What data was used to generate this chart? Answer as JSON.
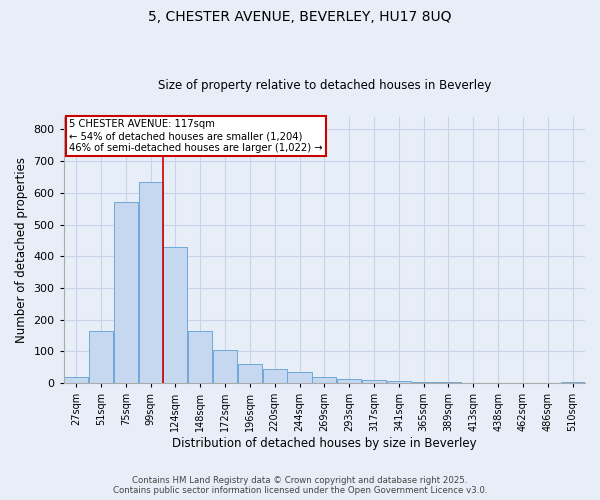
{
  "title_line1": "5, CHESTER AVENUE, BEVERLEY, HU17 8UQ",
  "title_line2": "Size of property relative to detached houses in Beverley",
  "xlabel": "Distribution of detached houses by size in Beverley",
  "ylabel": "Number of detached properties",
  "categories": [
    "27sqm",
    "51sqm",
    "75sqm",
    "99sqm",
    "124sqm",
    "148sqm",
    "172sqm",
    "196sqm",
    "220sqm",
    "244sqm",
    "269sqm",
    "293sqm",
    "317sqm",
    "341sqm",
    "365sqm",
    "389sqm",
    "413sqm",
    "438sqm",
    "462sqm",
    "486sqm",
    "510sqm"
  ],
  "values": [
    20,
    165,
    570,
    635,
    430,
    165,
    105,
    60,
    45,
    35,
    20,
    13,
    10,
    5,
    3,
    2,
    1,
    0,
    0,
    0,
    3
  ],
  "bar_color": "#c5d8f0",
  "bar_edge_color": "#6ea8d8",
  "annotation_text1": "5 CHESTER AVENUE: 117sqm",
  "annotation_text2": "← 54% of detached houses are smaller (1,204)",
  "annotation_text3": "46% of semi-detached houses are larger (1,022) →",
  "annotation_box_color": "#ffffff",
  "annotation_box_edgecolor": "#cc0000",
  "vline_color": "#cc0000",
  "grid_color": "#c8d4e8",
  "background_color": "#e8eef8",
  "ylim": [
    0,
    840
  ],
  "yticks": [
    0,
    100,
    200,
    300,
    400,
    500,
    600,
    700,
    800
  ],
  "footer_line1": "Contains HM Land Registry data © Crown copyright and database right 2025.",
  "footer_line2": "Contains public sector information licensed under the Open Government Licence v3.0."
}
